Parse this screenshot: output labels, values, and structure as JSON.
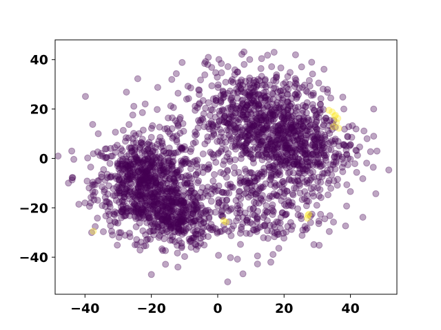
{
  "chart_data": {
    "type": "scatter",
    "title": "",
    "xlabel": "",
    "ylabel": "",
    "xlim": [
      -49,
      54
    ],
    "ylim": [
      -55,
      48
    ],
    "xticks": [
      -40,
      -20,
      0,
      20,
      40
    ],
    "yticks": [
      -40,
      -20,
      0,
      20,
      40
    ],
    "xtick_labels": [
      "−40",
      "−20",
      "0",
      "20",
      "40"
    ],
    "ytick_labels": [
      "−40",
      "−20",
      "0",
      "20",
      "40"
    ],
    "grid": false,
    "legend": "none",
    "colors": {
      "majority": "#440154",
      "minority": "#fde725"
    },
    "marker_alpha": 0.35,
    "point_count_approx": 2500,
    "clusters": [
      {
        "class": "majority",
        "center": [
          -22,
          -10
        ],
        "spread": [
          7.5,
          9.5
        ],
        "count": 700
      },
      {
        "class": "majority",
        "center": [
          -13,
          -24
        ],
        "spread": [
          6,
          6
        ],
        "count": 300
      },
      {
        "class": "majority",
        "center": [
          12,
          16
        ],
        "spread": [
          10,
          10
        ],
        "count": 700
      },
      {
        "class": "majority",
        "center": [
          25,
          3
        ],
        "spread": [
          8,
          8
        ],
        "count": 400
      },
      {
        "class": "majority",
        "center": [
          10,
          -20
        ],
        "spread": [
          12,
          9
        ],
        "count": 260
      },
      {
        "class": "majority",
        "center": [
          0,
          0
        ],
        "spread": [
          20,
          18
        ],
        "count": 150
      }
    ],
    "minority_points": [
      [
        33.5,
        19.5
      ],
      [
        34.5,
        18.8
      ],
      [
        35.5,
        17.5
      ],
      [
        36.2,
        16.2
      ],
      [
        35.8,
        14.5
      ],
      [
        34.8,
        12.8
      ],
      [
        36.5,
        12.2
      ],
      [
        35.2,
        17.1
      ],
      [
        27.2,
        -23.0
      ],
      [
        27.0,
        -24.2
      ],
      [
        27.5,
        -22.6
      ],
      [
        1.8,
        -25.2
      ],
      [
        2.5,
        -25.8
      ],
      [
        -37.5,
        -29.5
      ]
    ],
    "outlier_points": [
      [
        -44,
        3
      ],
      [
        -45,
        -10
      ],
      [
        -40,
        -18
      ],
      [
        -38,
        -30
      ],
      [
        -36,
        10
      ],
      [
        -20,
        -47
      ],
      [
        -12,
        -44
      ],
      [
        -8,
        -36
      ],
      [
        3,
        -50
      ],
      [
        16,
        -42
      ],
      [
        38,
        20
      ],
      [
        45,
        8
      ],
      [
        47,
        20
      ],
      [
        48,
        3
      ],
      [
        47,
        9
      ],
      [
        28,
        -26
      ],
      [
        22,
        -26
      ],
      [
        -3,
        38
      ],
      [
        6,
        35
      ],
      [
        17,
        43
      ]
    ]
  }
}
